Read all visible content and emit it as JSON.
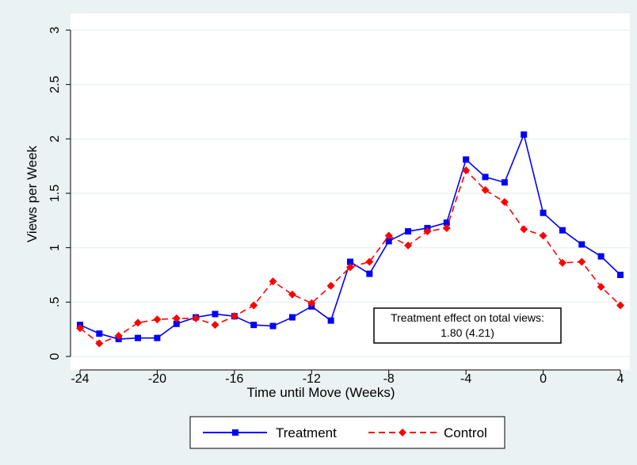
{
  "chart_data": {
    "type": "line",
    "xlabel": "Time until Move (Weeks)",
    "ylabel": "Views per Week",
    "xlim": [
      -24,
      4
    ],
    "ylim": [
      0,
      3
    ],
    "x_ticks": [
      -24,
      -20,
      -16,
      -12,
      -8,
      -4,
      0,
      4
    ],
    "y_ticks": [
      {
        "value": 0,
        "label": "0"
      },
      {
        "value": 0.5,
        "label": ".5"
      },
      {
        "value": 1,
        "label": "1"
      },
      {
        "value": 1.5,
        "label": "1.5"
      },
      {
        "value": 2,
        "label": "2"
      },
      {
        "value": 2.5,
        "label": "2.5"
      },
      {
        "value": 3,
        "label": "3"
      }
    ],
    "grid": "horizontal",
    "legend_position": "bottom",
    "x": [
      -24,
      -23,
      -22,
      -21,
      -20,
      -19,
      -18,
      -17,
      -16,
      -15,
      -14,
      -13,
      -12,
      -11,
      -10,
      -9,
      -8,
      -7,
      -6,
      -5,
      -4,
      -3,
      -2,
      -1,
      0,
      1,
      2,
      3,
      4
    ],
    "series": [
      {
        "name": "Treatment",
        "color": "#0000ff",
        "marker": "square",
        "line_style": "solid",
        "values": [
          0.29,
          0.21,
          0.16,
          0.17,
          0.17,
          0.3,
          0.36,
          0.39,
          0.37,
          0.29,
          0.28,
          0.36,
          0.46,
          0.33,
          0.87,
          0.76,
          1.06,
          1.15,
          1.18,
          1.23,
          1.81,
          1.65,
          1.6,
          2.04,
          1.32,
          1.16,
          1.03,
          0.92,
          0.75
        ]
      },
      {
        "name": "Control",
        "color": "#ff0000",
        "marker": "diamond",
        "line_style": "dashed",
        "values": [
          0.26,
          0.12,
          0.19,
          0.31,
          0.34,
          0.35,
          0.35,
          0.29,
          0.37,
          0.47,
          0.69,
          0.57,
          0.49,
          0.65,
          0.82,
          0.87,
          1.11,
          1.02,
          1.15,
          1.18,
          1.71,
          1.53,
          1.42,
          1.17,
          1.11,
          0.86,
          0.87,
          0.64,
          0.47
        ]
      }
    ],
    "annotation": {
      "line1": "Treatment effect on total views:",
      "line2": "1.80 (4.21)"
    }
  }
}
